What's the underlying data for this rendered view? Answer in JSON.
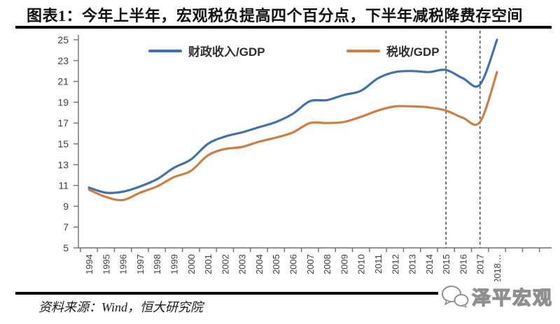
{
  "title": "图表1：今年上半年，宏观税负提高四个百分点，下半年减税降费存空间",
  "footer": {
    "source": "资料来源：Wind，恒大研究院",
    "watermark": "泽平宏观"
  },
  "colors": {
    "series1": "#4472a8",
    "series2": "#cb7f45",
    "axis": "#6e6e6e",
    "tick_label": "#3f3f3f",
    "dashed_line": "#4a4a4a",
    "rule": "#000000"
  },
  "chart_data": {
    "type": "line",
    "categories": [
      1994,
      1995,
      1996,
      1997,
      1998,
      1999,
      2000,
      2001,
      2002,
      2003,
      2004,
      2005,
      2006,
      2007,
      2008,
      2009,
      2010,
      2011,
      2012,
      2013,
      2014,
      2015,
      2016,
      2017,
      2018
    ],
    "last_xtick_suffix": "…",
    "series": [
      {
        "name": "财政收入/GDP",
        "values": [
          10.8,
          10.3,
          10.4,
          10.9,
          11.6,
          12.7,
          13.5,
          15.0,
          15.7,
          16.1,
          16.6,
          17.1,
          17.9,
          19.1,
          19.2,
          19.7,
          20.1,
          21.3,
          21.9,
          22.0,
          21.9,
          22.1,
          21.3,
          20.7,
          25.0
        ]
      },
      {
        "name": "税收/GDP",
        "values": [
          10.6,
          9.9,
          9.6,
          10.3,
          10.9,
          11.8,
          12.4,
          13.9,
          14.5,
          14.7,
          15.2,
          15.6,
          16.1,
          17.0,
          17.0,
          17.1,
          17.6,
          18.2,
          18.6,
          18.6,
          18.5,
          18.2,
          17.5,
          17.1,
          21.9
        ]
      }
    ],
    "ylim": [
      5,
      25
    ],
    "ytick_step": 2,
    "grid": false,
    "legend_position": "top-inside",
    "dashed_vlines_categories": [
      2015,
      2017
    ],
    "smoothed": true
  }
}
